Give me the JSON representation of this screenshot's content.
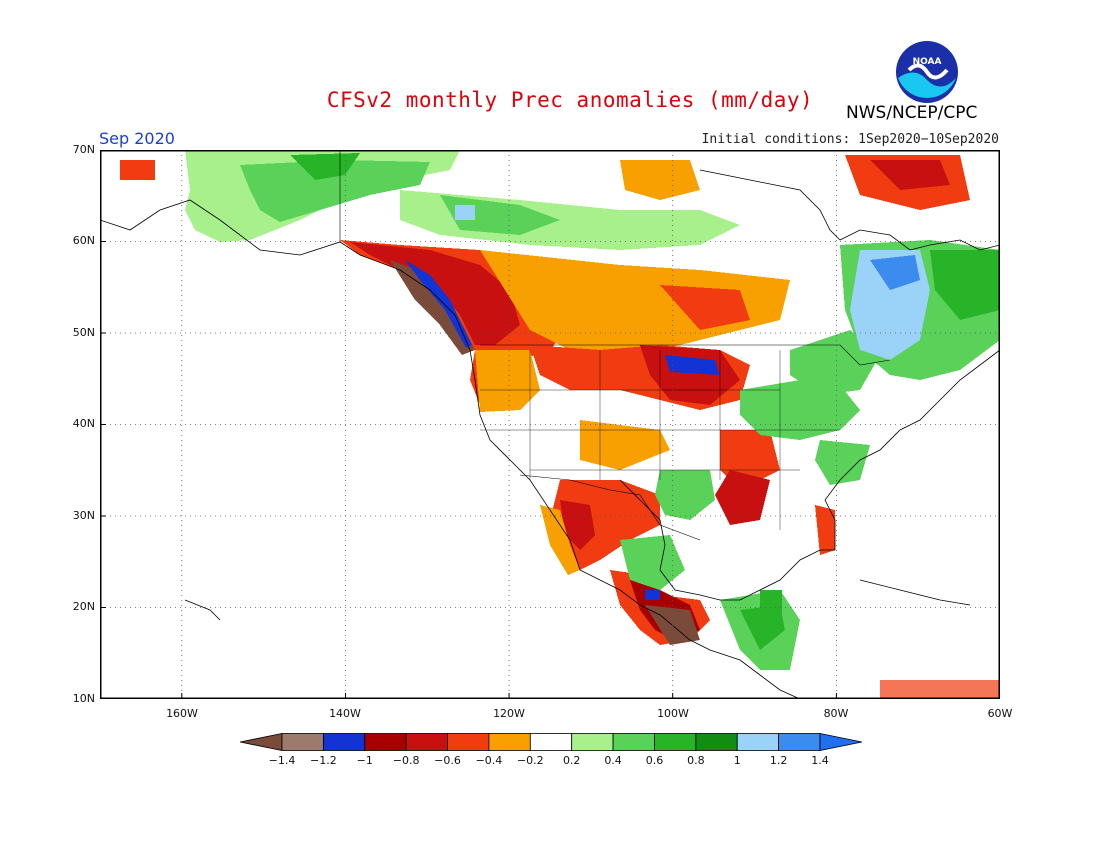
{
  "title": "CFSv2 monthly Prec anomalies (mm/day)",
  "agency": "NWS/NCEP/CPC",
  "logo_text": "NOAA",
  "valid_month": "Sep 2020",
  "initial_conditions": "Initial conditions: 1Sep2020−10Sep2020",
  "map": {
    "projection": "lat-lon",
    "lon_range": [
      -170,
      -60
    ],
    "lat_range": [
      10,
      70
    ],
    "lat_labels": [
      "70N",
      "60N",
      "50N",
      "40N",
      "30N",
      "20N",
      "10N"
    ],
    "lon_labels": [
      "160W",
      "140W",
      "120W",
      "100W",
      "80W",
      "60W"
    ],
    "grid": "dotted"
  },
  "colorbar": {
    "labels": [
      "−1.4",
      "−1.2",
      "−1",
      "−0.8",
      "−0.6",
      "−0.4",
      "−0.2",
      "0.2",
      "0.4",
      "0.6",
      "0.8",
      "1",
      "1.2",
      "1.4"
    ],
    "colors": [
      "#7a4a3a",
      "#9c7a6c",
      "#1234d4",
      "#a80000",
      "#c81010",
      "#f03c10",
      "#f8a000",
      "#ffffff",
      "#a8f08c",
      "#5ad25a",
      "#28b428",
      "#128c12",
      "#9ad2f8",
      "#3c8cf0",
      "#1f6ff0"
    ]
  },
  "anomaly_regions": [
    {
      "region": "Pacific Northwest / BC coast",
      "anomaly": "dry",
      "level": "≤ −1.4 to −0.6"
    },
    {
      "region": "Northern Plains / Upper Midwest",
      "anomaly": "dry",
      "level": "−1 to −0.4"
    },
    {
      "region": "Mexico / Gulf of California",
      "anomaly": "dry",
      "level": "−1.4 to −0.4"
    },
    {
      "region": "Alaska / Yukon",
      "anomaly": "wet",
      "level": "0.2 to 0.8"
    },
    {
      "region": "Quebec / Labrador",
      "anomaly": "wet",
      "level": "0.4 to 1.4"
    },
    {
      "region": "Great Lakes / Eastern US",
      "anomaly": "wet",
      "level": "0.2 to 0.8"
    },
    {
      "region": "Central America",
      "anomaly": "wet",
      "level": "0.2 to 0.8"
    }
  ]
}
